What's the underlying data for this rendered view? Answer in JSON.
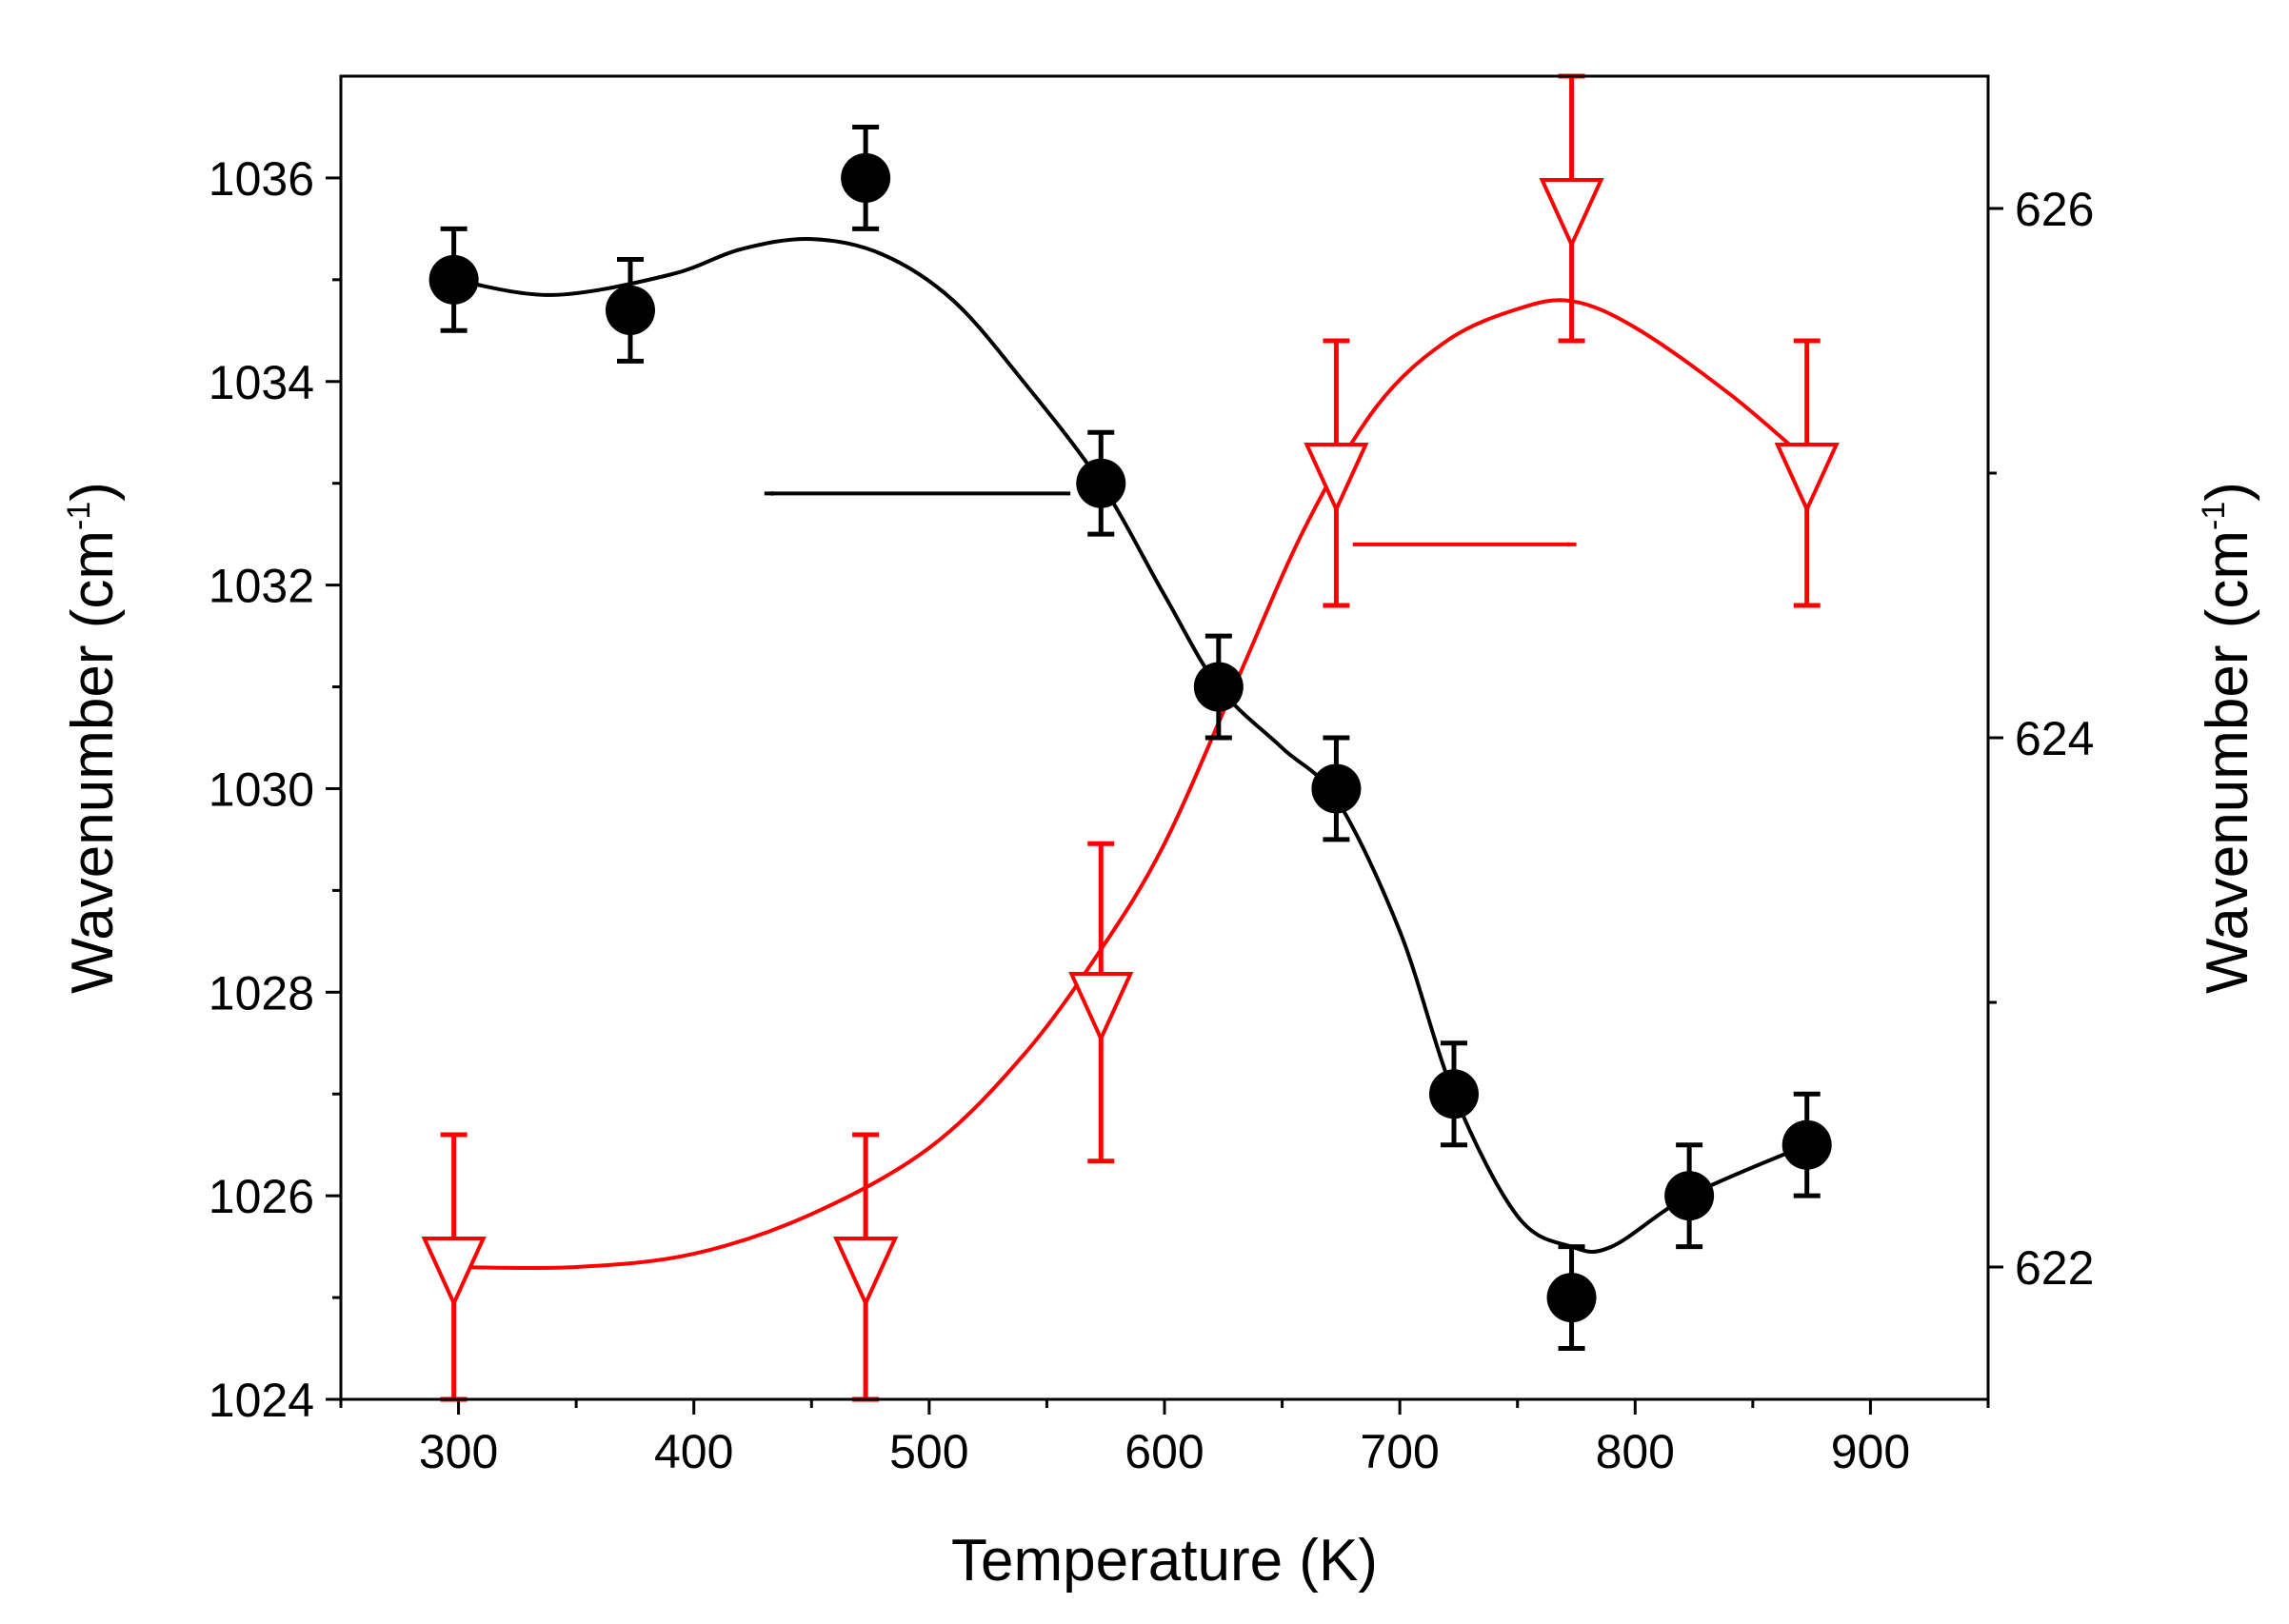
{
  "chart_data": {
    "type": "scatter",
    "xlabel": "Temperature (K)",
    "xlim": [
      250,
      950
    ],
    "xticks": [
      300,
      400,
      500,
      600,
      700,
      800,
      900
    ],
    "left_axis": {
      "label": "Wavenumber (cm",
      "label_sup": "-1",
      "label_close": ")",
      "ylim": [
        1024,
        1037
      ],
      "ticks": [
        1024,
        1026,
        1028,
        1030,
        1032,
        1034,
        1036
      ]
    },
    "right_axis": {
      "label": "Wavenumber (cm",
      "label_sup": "-1",
      "label_close": ")",
      "ylim": [
        621.5,
        626.5
      ],
      "ticks": [
        622,
        624,
        626
      ]
    },
    "series": [
      {
        "name": "left-series",
        "axis": "left",
        "color": "#000000",
        "marker": "filled-circle",
        "x": [
          298,
          373,
          473,
          573,
          623,
          673,
          723,
          773,
          823,
          873
        ],
        "y": [
          1035.0,
          1034.7,
          1036.0,
          1033.0,
          1031.0,
          1030.0,
          1027.0,
          1025.0,
          1026.0,
          1026.5
        ],
        "err": [
          0.5,
          0.5,
          0.5,
          0.5,
          0.5,
          0.5,
          0.5,
          0.5,
          0.5,
          0.5
        ],
        "curve_x": [
          298,
          340,
          390,
          420,
          450,
          480,
          510,
          540,
          573,
          600,
          623,
          650,
          673,
          700,
          723,
          750,
          773,
          790,
          823,
          873
        ],
        "curve_y": [
          1035.0,
          1034.85,
          1035.05,
          1035.3,
          1035.4,
          1035.25,
          1034.8,
          1034.0,
          1033.0,
          1031.9,
          1031.0,
          1030.4,
          1029.9,
          1028.6,
          1027.0,
          1025.8,
          1025.5,
          1025.5,
          1026.0,
          1026.5
        ]
      },
      {
        "name": "right-series",
        "axis": "right",
        "color": "#ff0000",
        "marker": "open-triangle-down",
        "x": [
          298,
          473,
          573,
          673,
          773,
          873
        ],
        "y": [
          622.0,
          622.0,
          623.0,
          625.0,
          626.0,
          625.0
        ],
        "err": [
          0.5,
          0.5,
          0.6,
          0.5,
          0.5,
          0.5
        ],
        "curve_x": [
          298,
          350,
          400,
          450,
          500,
          540,
          573,
          600,
          630,
          660,
          690,
          720,
          750,
          773,
          800,
          840,
          873
        ],
        "curve_y": [
          622.0,
          622.0,
          622.05,
          622.2,
          622.45,
          622.8,
          623.2,
          623.6,
          624.2,
          624.8,
          625.25,
          625.5,
          625.62,
          625.65,
          625.55,
          625.3,
          625.05
        ]
      }
    ],
    "annotations": [
      {
        "name": "left-arrow",
        "direction": "left",
        "color": "#000000",
        "x_from": 560,
        "x_to": 430,
        "y_left": 1032.9
      },
      {
        "name": "right-arrow",
        "direction": "right",
        "color": "#ff0000",
        "x_from": 680,
        "x_to": 775,
        "y_left": 1032.4
      }
    ]
  }
}
